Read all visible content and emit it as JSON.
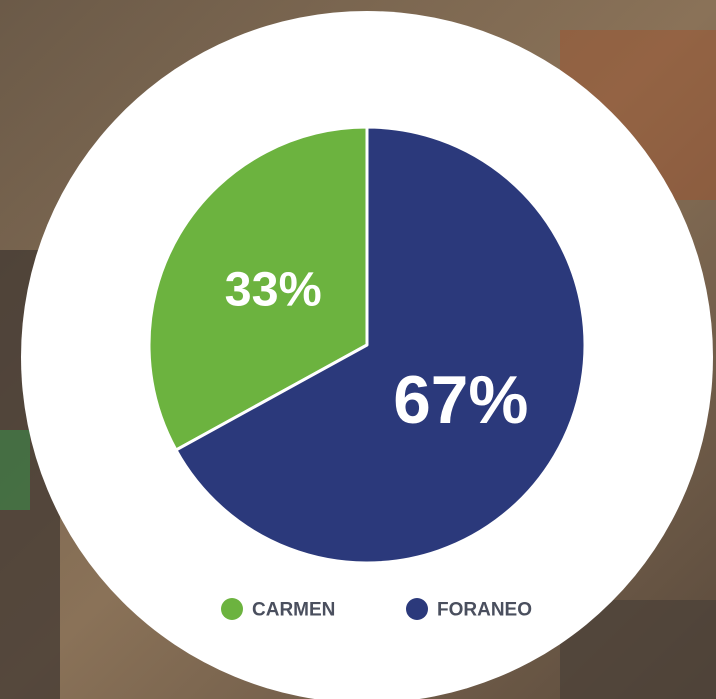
{
  "chart_data": {
    "type": "pie",
    "categories": [
      "CARMEN",
      "FORANEO"
    ],
    "values": [
      33,
      67
    ],
    "value_labels": [
      "33%",
      "67%"
    ],
    "colors": [
      "#6cb33f",
      "#2b397b"
    ],
    "legend": "bottom"
  }
}
